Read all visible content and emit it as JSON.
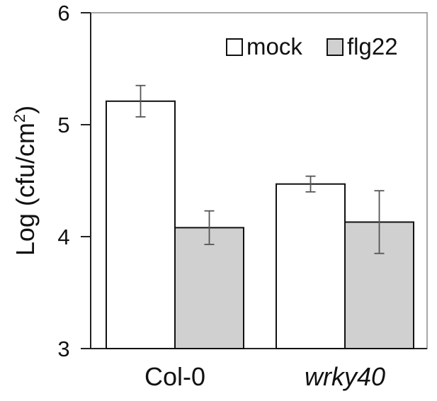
{
  "chart_data": {
    "type": "bar",
    "ylabel": "Log (cfu/cm",
    "ylabel_sup": "2",
    "ylabel_close": ")",
    "ylim": [
      3,
      6
    ],
    "yticks": [
      3,
      4,
      5,
      6
    ],
    "categories": [
      "Col-0",
      "wrky40"
    ],
    "category_italic": [
      false,
      true
    ],
    "series": [
      {
        "name": "mock",
        "values": [
          5.21,
          4.47
        ],
        "errors": [
          0.14,
          0.07
        ],
        "color": "#ffffff"
      },
      {
        "name": "flg22",
        "values": [
          4.08,
          4.13
        ],
        "errors": [
          0.15,
          0.28
        ],
        "color": "#d0d0d0"
      }
    ],
    "legend_position": "top-right",
    "grid": false
  }
}
